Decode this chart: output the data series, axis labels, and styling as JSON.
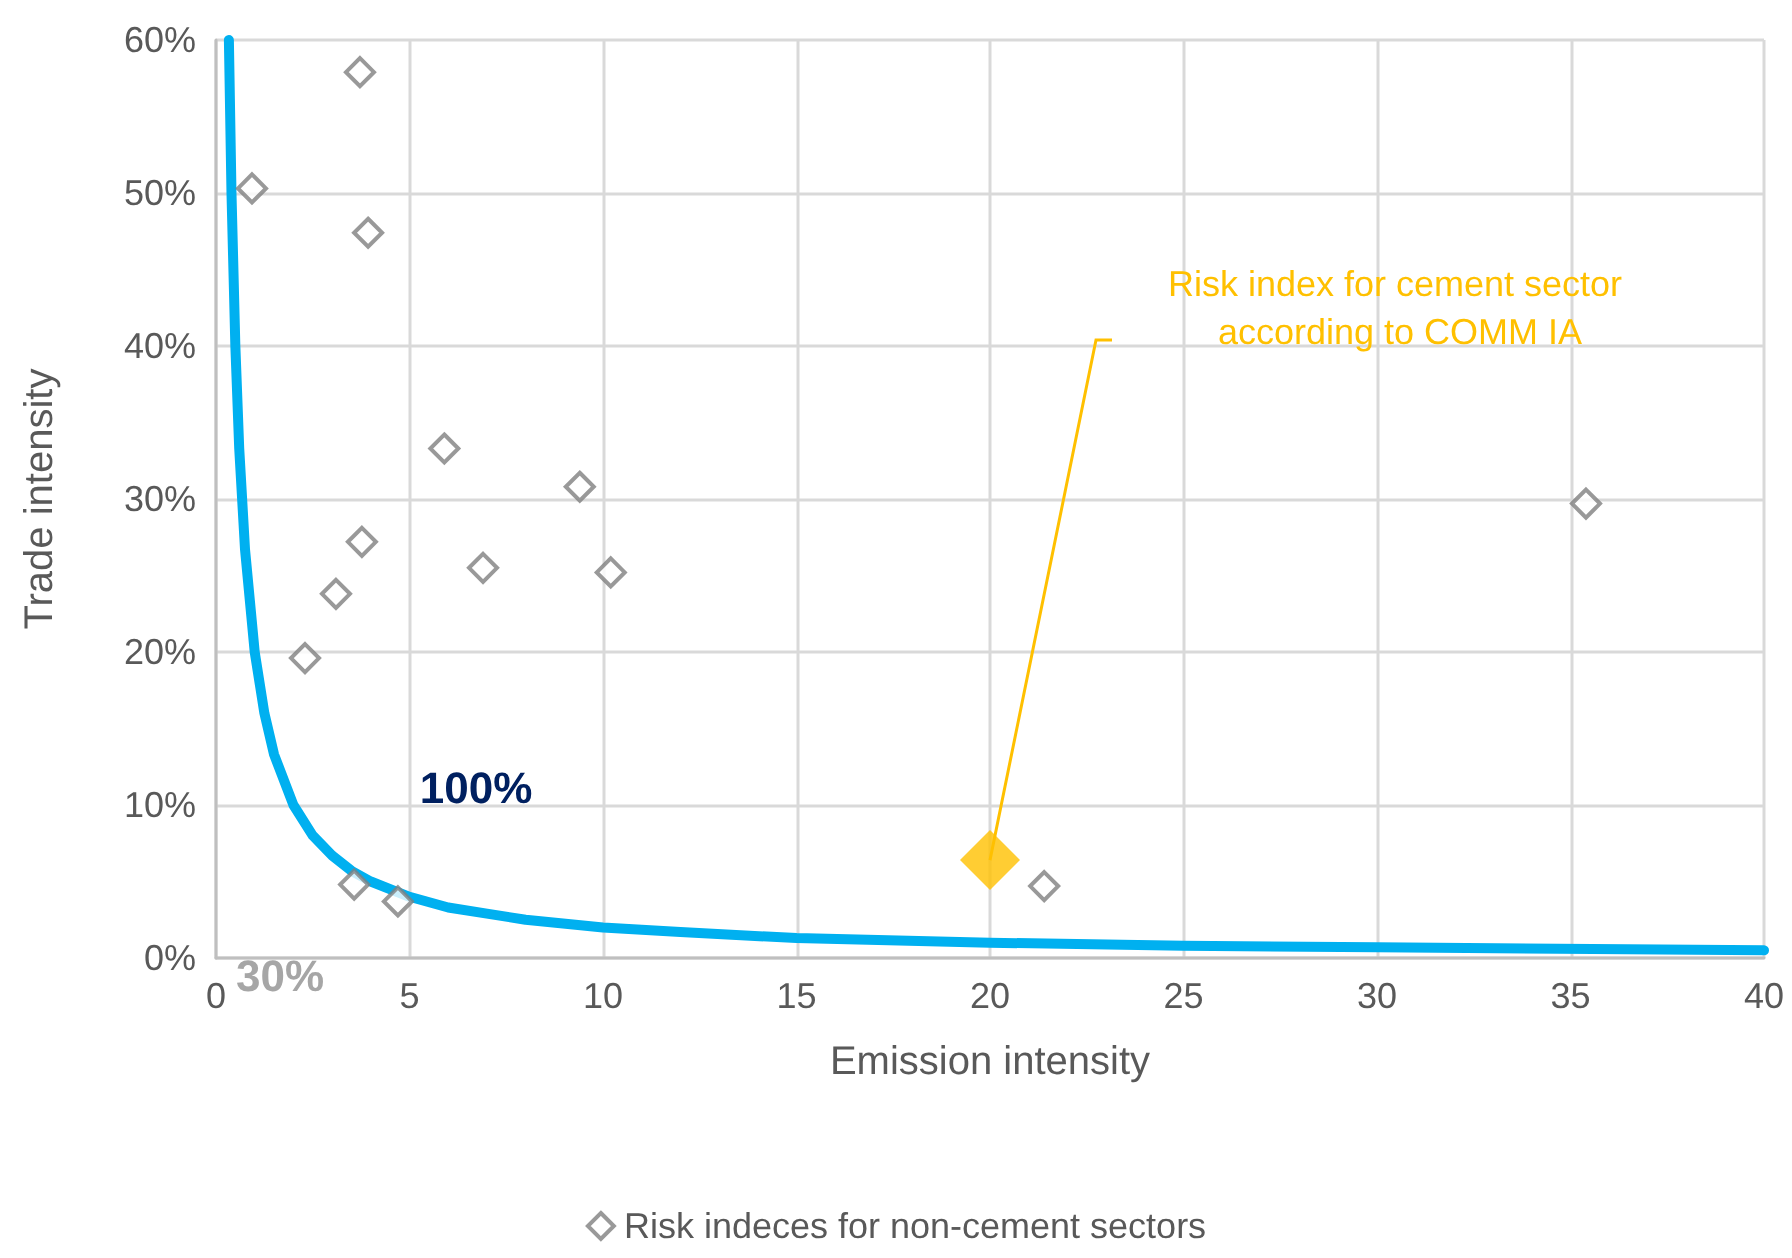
{
  "chart_data": {
    "type": "scatter",
    "xlabel": "Emission intensity",
    "ylabel": "Trade intensity",
    "xlim": [
      0,
      40
    ],
    "xticks": [
      0,
      5,
      10,
      15,
      20,
      25,
      30,
      35,
      40
    ],
    "ylim": [
      0,
      60
    ],
    "yticks": [
      {
        "value": 0,
        "label": "0%"
      },
      {
        "value": 10,
        "label": "10%"
      },
      {
        "value": 20,
        "label": "20%"
      },
      {
        "value": 30,
        "label": "30%"
      },
      {
        "value": 40,
        "label": "40%"
      },
      {
        "value": 50,
        "label": "50%"
      },
      {
        "value": 60,
        "label": "60%"
      }
    ],
    "grid": true,
    "legend": "bottom",
    "series": [
      {
        "type": "line",
        "color": "#00b0f0",
        "marker": "none",
        "line_style": "solid",
        "x": [
          0.333,
          0.4,
          0.5,
          0.6,
          0.75,
          1,
          1.25,
          1.5,
          2,
          2.5,
          3,
          3.5,
          4,
          5,
          6,
          7,
          8,
          10,
          12,
          15,
          20,
          25,
          30,
          40
        ],
        "values": [
          60,
          50,
          40,
          33.3,
          26.7,
          20,
          16,
          13.3,
          10,
          8,
          6.7,
          5.7,
          5,
          4,
          3.3,
          2.9,
          2.5,
          2,
          1.7,
          1.3,
          1,
          0.8,
          0.7,
          0.5
        ]
      },
      {
        "name": "Risk indeces for non-cement sectors",
        "color": "#7f7f7f",
        "marker": "diamond",
        "x": [
          0.93,
          3.72,
          3.93,
          5.9,
          9.4,
          3.77,
          3.1,
          6.9,
          10.2,
          2.3,
          3.57,
          4.7,
          21.4,
          35.4
        ],
        "values": [
          50.3,
          57.9,
          47.4,
          33.3,
          30.8,
          27.2,
          23.8,
          25.5,
          25.2,
          19.6,
          4.8,
          3.7,
          4.7,
          29.7
        ]
      },
      {
        "color": "#ffc000",
        "marker": "diamond",
        "x": [
          20
        ],
        "values": [
          6.4
        ]
      }
    ],
    "annotations": [
      "Risk index for cement sector according to COMM IA",
      "100%",
      "30%"
    ]
  }
}
